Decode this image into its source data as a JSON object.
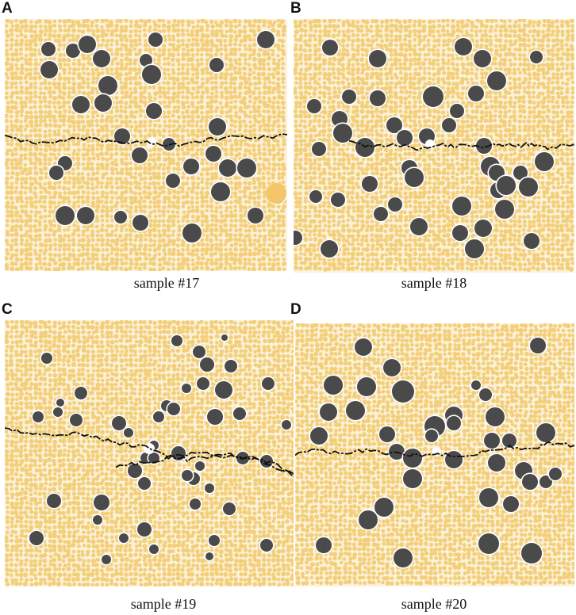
{
  "panels": [
    {
      "letter": "A",
      "caption": "sample #17"
    },
    {
      "letter": "B",
      "caption": "sample #18"
    },
    {
      "letter": "C",
      "caption": "sample #19"
    },
    {
      "letter": "D",
      "caption": "sample #20"
    }
  ],
  "colors": {
    "matrix_particle": "#f3cf7a",
    "matrix_background": "#fbf2dc",
    "inclusion": "#4a4a4a",
    "crack": "#111111"
  }
}
